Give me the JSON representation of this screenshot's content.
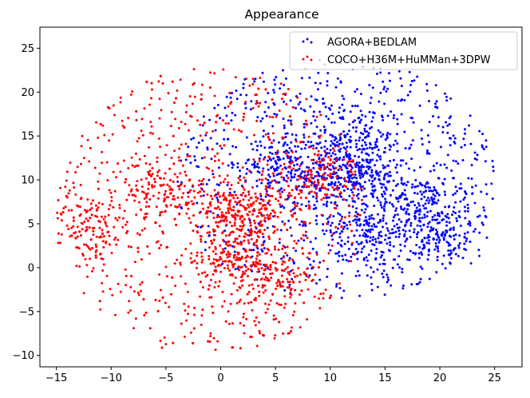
{
  "chart_data": {
    "type": "scatter",
    "title": "Appearance",
    "xlabel": "",
    "ylabel": "",
    "xlim": [
      -16.5,
      27.5
    ],
    "ylim": [
      -11.3,
      27.4
    ],
    "xticks": [
      -15,
      -10,
      -5,
      0,
      5,
      10,
      15,
      20,
      25
    ],
    "yticks": [
      -10,
      -5,
      0,
      5,
      10,
      15,
      20,
      25
    ],
    "grid": false,
    "legend_position": "top-right",
    "series": [
      {
        "name": "AGORA+BEDLAM",
        "color": "#0000ff",
        "cluster_centers": [
          [
            10,
            10
          ],
          [
            13,
            11
          ],
          [
            18,
            8
          ],
          [
            20,
            4
          ],
          [
            6,
            12
          ],
          [
            14,
            4
          ],
          [
            12,
            15
          ]
        ],
        "extent": {
          "x": [
            -4,
            25
          ],
          "y": [
            -4,
            24
          ]
        }
      },
      {
        "name": "COCO+H36M+HuMMan+3DPW",
        "color": "#ff0000",
        "cluster_centers": [
          [
            -5.5,
            9
          ],
          [
            1,
            7
          ],
          [
            3,
            6
          ],
          [
            1,
            1.5
          ],
          [
            9,
            10
          ],
          [
            5,
            -1
          ],
          [
            -12,
            5
          ]
        ],
        "extent": {
          "x": [
            -15,
            13
          ],
          "y": [
            -10,
            23
          ]
        }
      }
    ]
  }
}
